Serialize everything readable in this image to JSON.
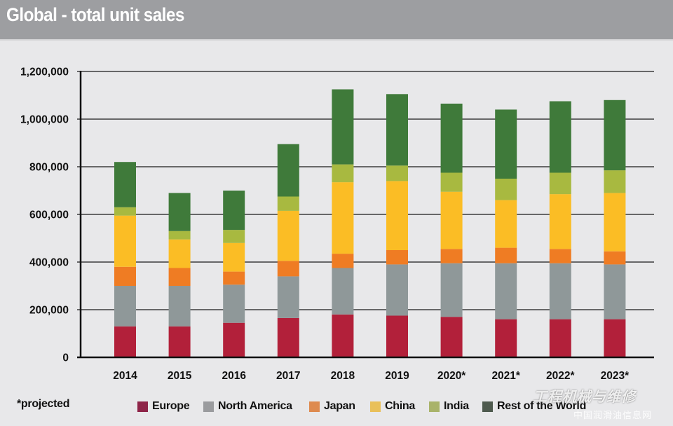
{
  "header": {
    "title": "Global - total unit sales"
  },
  "chart_data": {
    "type": "bar",
    "stacked": true,
    "title": "Global - total unit sales",
    "xlabel": "",
    "ylabel": "",
    "ylim": [
      0,
      1200000
    ],
    "yticks": [
      0,
      200000,
      400000,
      600000,
      800000,
      1000000,
      1200000
    ],
    "ytick_labels": [
      "0",
      "200,000",
      "400,000",
      "600,000",
      "800,000",
      "1,000,000",
      "1,200,000"
    ],
    "grid": true,
    "categories": [
      "2014",
      "2015",
      "2016",
      "2017",
      "2018",
      "2019",
      "2020*",
      "2021*",
      "2022*",
      "2023*"
    ],
    "series": [
      {
        "name": "Europe",
        "color": "#b2203a",
        "values": [
          130000,
          130000,
          145000,
          165000,
          180000,
          175000,
          170000,
          160000,
          160000,
          160000
        ]
      },
      {
        "name": "North America",
        "color": "#8f9899",
        "values": [
          170000,
          170000,
          160000,
          175000,
          195000,
          215000,
          225000,
          235000,
          235000,
          230000
        ]
      },
      {
        "name": "Japan",
        "color": "#ef7c23",
        "values": [
          80000,
          75000,
          55000,
          65000,
          60000,
          60000,
          60000,
          65000,
          60000,
          55000
        ]
      },
      {
        "name": "China",
        "color": "#fbbd25",
        "values": [
          215000,
          120000,
          120000,
          210000,
          300000,
          290000,
          240000,
          200000,
          230000,
          245000
        ]
      },
      {
        "name": "India",
        "color": "#a8b940",
        "values": [
          35000,
          35000,
          55000,
          60000,
          75000,
          65000,
          80000,
          90000,
          90000,
          95000
        ]
      },
      {
        "name": "Rest of the World",
        "color": "#3f7a3a",
        "values": [
          190000,
          160000,
          165000,
          220000,
          315000,
          300000,
          290000,
          290000,
          300000,
          295000
        ]
      }
    ],
    "legend": {
      "placement": "bottom",
      "note": "*projected",
      "items": [
        {
          "label": "Europe",
          "color": "#8e2448"
        },
        {
          "label": "North America",
          "color": "#9a9b9e"
        },
        {
          "label": "Japan",
          "color": "#de8a4f"
        },
        {
          "label": "China",
          "color": "#e9c05a"
        },
        {
          "label": "India",
          "color": "#a9b36a"
        },
        {
          "label": "Rest of the World",
          "color": "#4e5a4e"
        }
      ]
    }
  },
  "watermark": {
    "line1": "工程机械与维修",
    "line2": "中国润滑油信息网"
  }
}
